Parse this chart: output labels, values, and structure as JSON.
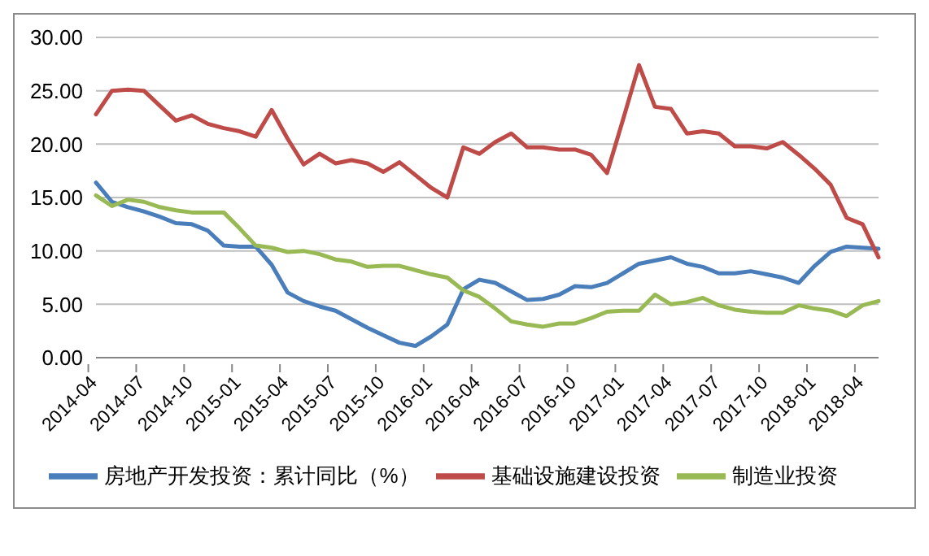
{
  "chart_data": {
    "type": "line",
    "categories": [
      "2014-04",
      null,
      null,
      "2014-07",
      null,
      null,
      "2014-10",
      null,
      null,
      "2015-01",
      null,
      null,
      "2015-04",
      null,
      null,
      "2015-07",
      null,
      null,
      "2015-10",
      null,
      null,
      "2016-01",
      null,
      null,
      "2016-04",
      null,
      null,
      "2016-07",
      null,
      null,
      "2016-10",
      null,
      null,
      "2017-01",
      null,
      null,
      "2017-04",
      null,
      null,
      "2017-07",
      null,
      null,
      "2017-10",
      null,
      null,
      "2018-01",
      null,
      null,
      "2018-04",
      null
    ],
    "series": [
      {
        "name": "房地产开发投资：累计同比（%）",
        "color": "#4a7ebb",
        "values": [
          16.4,
          14.6,
          14.1,
          13.7,
          13.2,
          12.6,
          12.5,
          11.9,
          10.5,
          10.4,
          10.4,
          8.7,
          6.1,
          5.3,
          4.8,
          4.4,
          3.6,
          2.8,
          2.1,
          1.4,
          1.1,
          2.0,
          3.1,
          6.4,
          7.3,
          7.0,
          6.2,
          5.4,
          5.5,
          5.9,
          6.7,
          6.6,
          7.0,
          7.9,
          8.8,
          9.1,
          9.4,
          8.8,
          8.5,
          7.9,
          7.9,
          8.1,
          7.8,
          7.5,
          7.0,
          8.6,
          9.9,
          10.4,
          10.3,
          10.2
        ]
      },
      {
        "name": "基础设施建设投资",
        "color": "#be4b48",
        "values": [
          22.8,
          25.0,
          25.1,
          25.0,
          23.6,
          22.2,
          22.7,
          21.9,
          21.5,
          21.2,
          20.7,
          23.2,
          20.5,
          18.1,
          19.1,
          18.2,
          18.5,
          18.2,
          17.4,
          18.3,
          17.1,
          15.9,
          15.0,
          19.7,
          19.1,
          20.2,
          21.0,
          19.7,
          19.7,
          19.5,
          19.5,
          19.0,
          17.3,
          22.3,
          27.4,
          23.5,
          23.3,
          21.0,
          21.2,
          21.0,
          19.8,
          19.8,
          19.6,
          20.2,
          19.0,
          17.7,
          16.2,
          13.1,
          12.5,
          9.4
        ]
      },
      {
        "name": "制造业投资",
        "color": "#98b954",
        "values": [
          15.2,
          14.2,
          14.8,
          14.6,
          14.1,
          13.8,
          13.6,
          13.6,
          13.6,
          12.1,
          10.5,
          10.3,
          9.9,
          10.0,
          9.7,
          9.2,
          9.0,
          8.5,
          8.6,
          8.6,
          8.2,
          7.8,
          7.5,
          6.3,
          5.7,
          4.6,
          3.4,
          3.1,
          2.9,
          3.2,
          3.2,
          3.7,
          4.3,
          4.4,
          4.4,
          5.9,
          5.0,
          5.2,
          5.6,
          4.9,
          4.5,
          4.3,
          4.2,
          4.2,
          4.9,
          4.6,
          4.4,
          3.9,
          4.9,
          5.3
        ]
      }
    ],
    "ylim": [
      0,
      30
    ],
    "yticks": [
      {
        "value": 0,
        "label": "0.00"
      },
      {
        "value": 5,
        "label": "5.00"
      },
      {
        "value": 10,
        "label": "10.00"
      },
      {
        "value": 15,
        "label": "15.00"
      },
      {
        "value": 20,
        "label": "20.00"
      },
      {
        "value": 25,
        "label": "25.00"
      },
      {
        "value": 30,
        "label": "30.00"
      }
    ],
    "grid": "y",
    "legend": "bottom",
    "marker": "none",
    "line_style": "solid"
  }
}
